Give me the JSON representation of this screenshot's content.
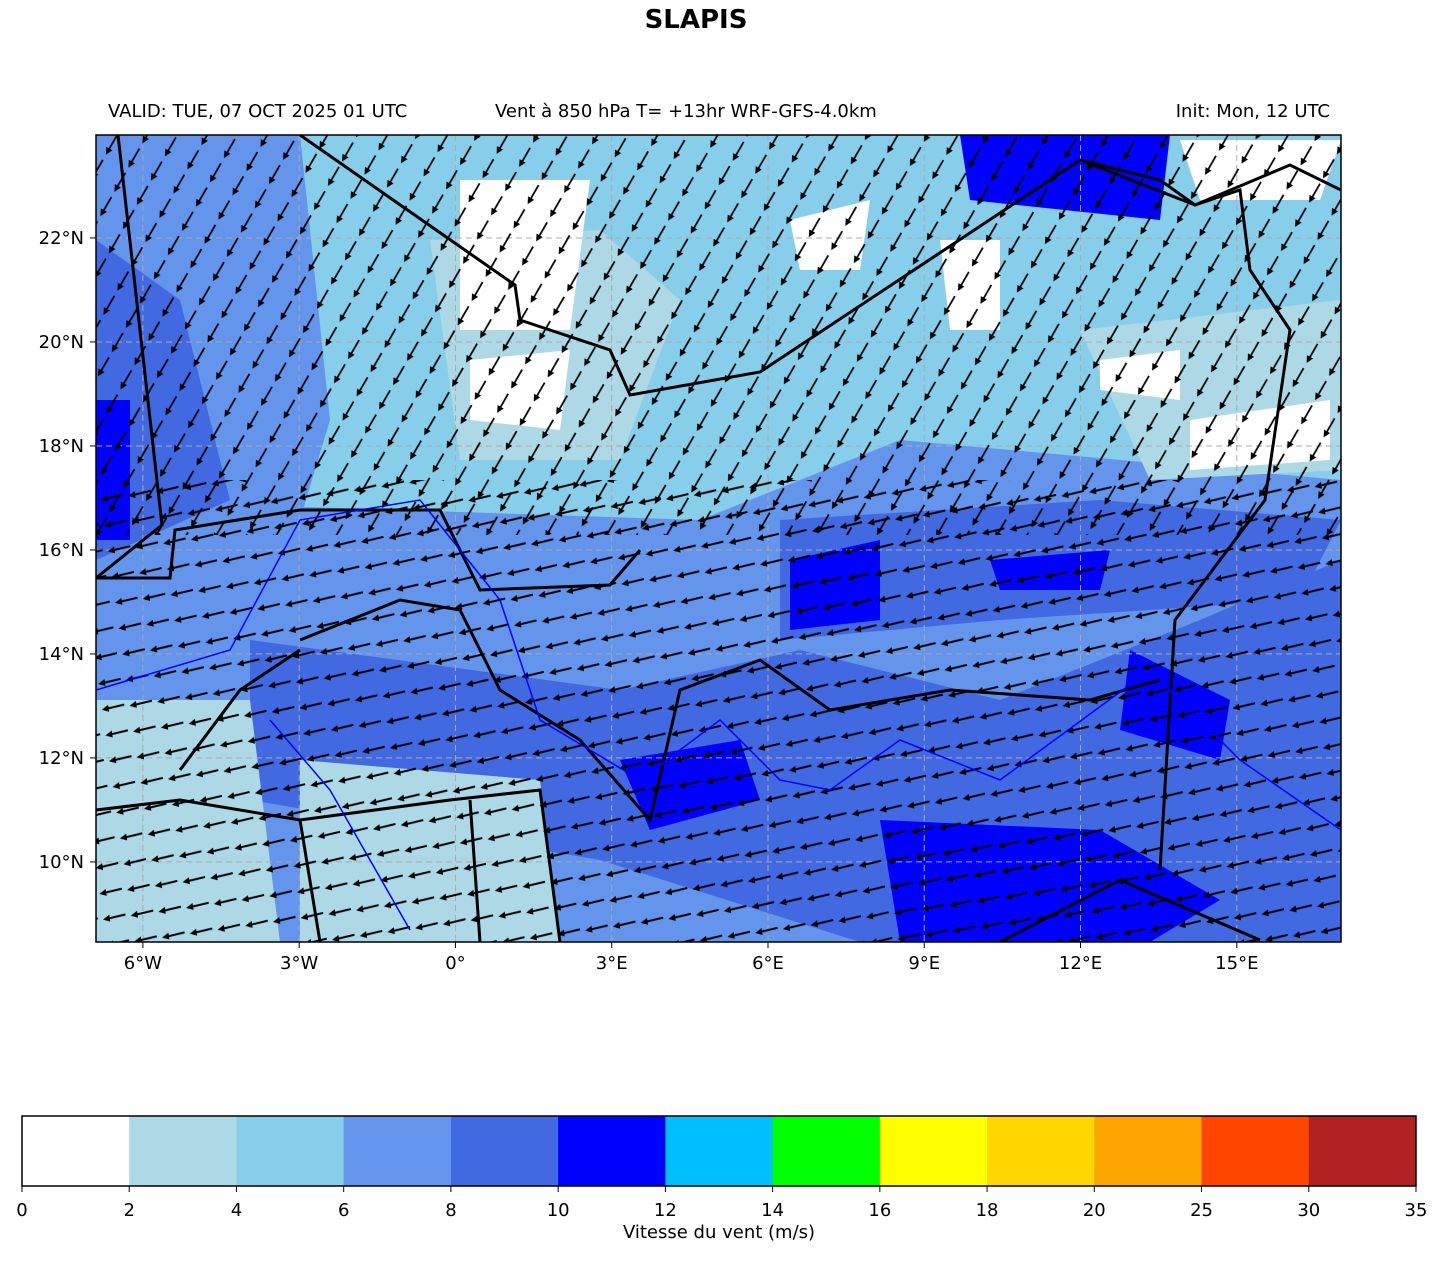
{
  "title": "SLAPIS",
  "header": {
    "left": "VALID: TUE, 07 OCT 2025 01 UTC",
    "center": "Vent à 850 hPa T= +13hr  WRF-GFS-4.0km",
    "right": "Init: Mon, 12 UTC"
  },
  "map": {
    "lon_range": [
      -6.9,
      17
    ],
    "lat_range": [
      8.46,
      23.98
    ],
    "xticks": [
      {
        "value": -6,
        "label": "6°W"
      },
      {
        "value": -3,
        "label": "3°W"
      },
      {
        "value": 0,
        "label": "0°"
      },
      {
        "value": 3,
        "label": "3°E"
      },
      {
        "value": 6,
        "label": "6°E"
      },
      {
        "value": 9,
        "label": "9°E"
      },
      {
        "value": 12,
        "label": "12°E"
      },
      {
        "value": 15,
        "label": "15°E"
      }
    ],
    "yticks": [
      {
        "value": 10,
        "label": "10°N"
      },
      {
        "value": 12,
        "label": "12°N"
      },
      {
        "value": 14,
        "label": "14°N"
      },
      {
        "value": 16,
        "label": "16°N"
      },
      {
        "value": 18,
        "label": "18°N"
      },
      {
        "value": 20,
        "label": "20°N"
      },
      {
        "value": 22,
        "label": "22°N"
      }
    ],
    "grid": true
  },
  "colorbar": {
    "label": "Vitesse du vent (m/s)",
    "levels": [
      0,
      2,
      4,
      6,
      8,
      10,
      12,
      14,
      16,
      18,
      20,
      25,
      30,
      35
    ],
    "colors": [
      "#ffffff",
      "#add8e6",
      "#87ceeb",
      "#6495ed",
      "#4169e1",
      "#0000ff",
      "#00bfff",
      "#00ff00",
      "#ffff00",
      "#ffd700",
      "#ffa500",
      "#ff4500",
      "#b22222"
    ]
  }
}
